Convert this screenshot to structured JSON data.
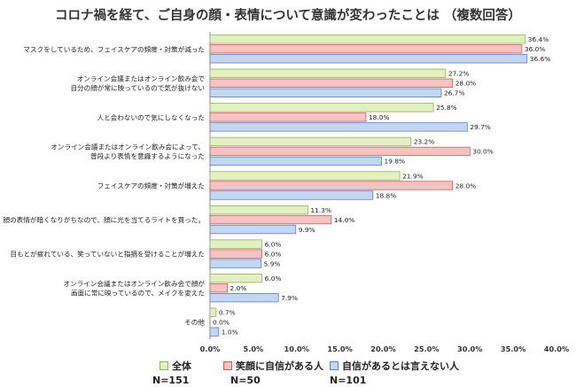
{
  "chart_data": {
    "type": "bar",
    "orientation": "horizontal",
    "title": "コロナ禍を経て、ご自身の顔・表情について意識が変わったことは （複数回答）",
    "categories": [
      "マスクをしているため、フェイスケアの頻度・対策が減った",
      "オンライン会議またはオンライン飲み会で\n自分の顔が常に映っているので気が抜けない",
      "人と会わないので気にしなくなった",
      "オンライン会議またはオンライン飲み会によって、\n普段より表情を意識するようになった",
      "フェイスケアの頻度・対策が増えた",
      "顔の表情が暗くなりがちなので、顔に光を当てるライトを買った。",
      "目もとが疲れている、笑っていないと指摘を受けることが増えた",
      "オンライン会議またはオンライン飲み会で顔が\n画面に常に映っているので、メイクを変えた",
      "その他"
    ],
    "series": [
      {
        "name": "全体",
        "color": "#e2f0c2",
        "stroke": "#8fb356",
        "values": [
          36.4,
          27.2,
          25.8,
          23.2,
          21.9,
          11.3,
          6.0,
          6.0,
          0.7
        ],
        "labels": [
          "36.4%",
          "27.2%",
          "25.8%",
          "23.2%",
          "21.9%",
          "11.3%",
          "6.0%",
          "6.0%",
          "0.7%"
        ]
      },
      {
        "name": "笑顔に自信がある人",
        "color": "#f6c2c2",
        "stroke": "#cc5a5a",
        "values": [
          36.0,
          28.0,
          18.0,
          30.0,
          28.0,
          14.0,
          6.0,
          2.0,
          0.0
        ],
        "labels": [
          "36.0%",
          "28.0%",
          "18.0%",
          "30.0%",
          "28.0%",
          "14.0%",
          "6.0%",
          "2.0%",
          "0.0%"
        ]
      },
      {
        "name": "自信があるとは言えない人",
        "color": "#c4d6f2",
        "stroke": "#5b7fc4",
        "values": [
          36.6,
          26.7,
          29.7,
          19.8,
          18.8,
          9.9,
          5.9,
          7.9,
          1.0
        ],
        "labels": [
          "36.6%",
          "26.7%",
          "29.7%",
          "19.8%",
          "18.8%",
          "9.9%",
          "5.9%",
          "7.9%",
          "1.0%"
        ]
      }
    ],
    "xlim": [
      0,
      40
    ],
    "x_ticks": [
      "0.0%",
      "5.0%",
      "10.0%",
      "15.0%",
      "20.0%",
      "25.0%",
      "30.0%",
      "35.0%",
      "40.0%"
    ],
    "x_tick_values": [
      0,
      5,
      10,
      15,
      20,
      25,
      30,
      35,
      40
    ],
    "grid": false,
    "legend_position": "bottom"
  },
  "legend": {
    "items": [
      {
        "label": "全体",
        "n": "N=151"
      },
      {
        "label": "笑顔に自信がある人",
        "n": "N=50"
      },
      {
        "label": "自信があるとは言えない人",
        "n": "N=101"
      }
    ]
  }
}
